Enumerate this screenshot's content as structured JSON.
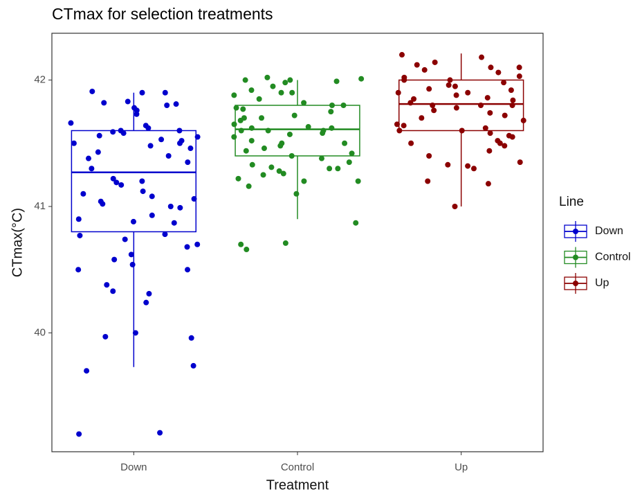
{
  "chart_data": {
    "type": "box",
    "title": "CTmax for selection treatments",
    "x_label": "Treatment",
    "y_label": "CTmax(°C)",
    "legend_title": "Line",
    "legend": "right",
    "grid": false,
    "categories": [
      "Down",
      "Control",
      "Up"
    ],
    "ylim": [
      39.06,
      42.37
    ],
    "yticks": [
      40,
      41,
      42
    ],
    "series": [
      {
        "name": "Down",
        "color": "#0000cd",
        "whisker_low": 39.73,
        "q1": 40.8,
        "median": 41.27,
        "q3": 41.6,
        "whisker_high": 41.9,
        "points": [
          41.91,
          41.9,
          41.9,
          41.83,
          41.82,
          41.81,
          41.8,
          41.78,
          41.76,
          41.73,
          41.66,
          41.64,
          41.62,
          41.6,
          41.6,
          41.59,
          41.58,
          41.56,
          41.55,
          41.53,
          41.52,
          41.5,
          41.5,
          41.48,
          41.46,
          41.43,
          41.4,
          41.38,
          41.35,
          41.3,
          41.22,
          41.2,
          41.19,
          41.17,
          41.12,
          41.1,
          41.08,
          41.06,
          41.04,
          41.02,
          41.0,
          40.99,
          40.93,
          40.9,
          40.88,
          40.87,
          40.78,
          40.77,
          40.74,
          40.7,
          40.68,
          40.62,
          40.58,
          40.54,
          40.5,
          40.5,
          40.38,
          40.33,
          40.31,
          40.24,
          40.0,
          39.97,
          39.96,
          39.74,
          39.7,
          39.21,
          39.2
        ]
      },
      {
        "name": "Control",
        "color": "#228b22",
        "whisker_low": 40.9,
        "q1": 41.4,
        "median": 41.61,
        "q3": 41.8,
        "whisker_high": 42.0,
        "points": [
          42.02,
          42.01,
          42.0,
          42.0,
          41.99,
          41.98,
          41.95,
          41.92,
          41.9,
          41.9,
          41.88,
          41.85,
          41.82,
          41.8,
          41.8,
          41.78,
          41.77,
          41.75,
          41.72,
          41.7,
          41.7,
          41.68,
          41.65,
          41.63,
          41.62,
          41.62,
          41.6,
          41.6,
          41.6,
          41.58,
          41.57,
          41.55,
          41.52,
          41.5,
          41.5,
          41.48,
          41.46,
          41.44,
          41.42,
          41.4,
          41.38,
          41.35,
          41.33,
          41.31,
          41.3,
          41.3,
          41.28,
          41.26,
          41.25,
          41.22,
          41.2,
          41.2,
          41.16,
          41.1,
          40.87,
          40.71,
          40.7,
          40.66
        ]
      },
      {
        "name": "Up",
        "color": "#8b0000",
        "whisker_low": 41.0,
        "q1": 41.6,
        "median": 41.81,
        "q3": 42.0,
        "whisker_high": 42.21,
        "points": [
          42.2,
          42.18,
          42.14,
          42.12,
          42.1,
          42.1,
          42.08,
          42.06,
          42.03,
          42.02,
          42.0,
          42.0,
          41.98,
          41.96,
          41.95,
          41.93,
          41.92,
          41.9,
          41.9,
          41.88,
          41.86,
          41.85,
          41.84,
          41.82,
          41.8,
          41.8,
          41.8,
          41.78,
          41.76,
          41.74,
          41.72,
          41.7,
          41.68,
          41.65,
          41.64,
          41.62,
          41.6,
          41.6,
          41.58,
          41.56,
          41.55,
          41.52,
          41.5,
          41.5,
          41.48,
          41.44,
          41.4,
          41.35,
          41.33,
          41.32,
          41.3,
          41.2,
          41.18,
          41.0
        ]
      }
    ]
  }
}
